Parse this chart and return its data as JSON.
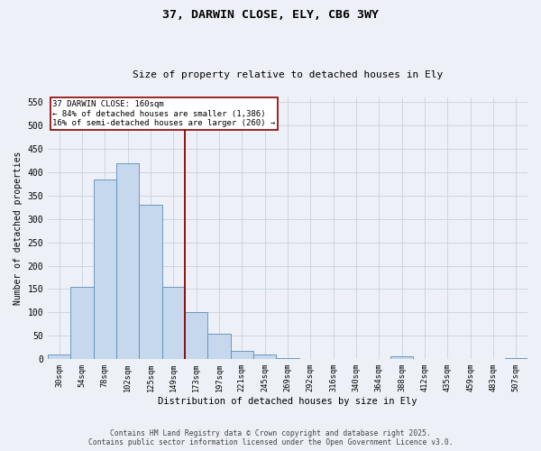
{
  "title1": "37, DARWIN CLOSE, ELY, CB6 3WY",
  "title2": "Size of property relative to detached houses in Ely",
  "xlabel": "Distribution of detached houses by size in Ely",
  "ylabel": "Number of detached properties",
  "categories": [
    "30sqm",
    "54sqm",
    "78sqm",
    "102sqm",
    "125sqm",
    "149sqm",
    "173sqm",
    "197sqm",
    "221sqm",
    "245sqm",
    "269sqm",
    "292sqm",
    "316sqm",
    "340sqm",
    "364sqm",
    "388sqm",
    "412sqm",
    "435sqm",
    "459sqm",
    "483sqm",
    "507sqm"
  ],
  "bar_values": [
    10,
    155,
    385,
    420,
    330,
    155,
    100,
    55,
    18,
    10,
    3,
    1,
    1,
    1,
    1,
    5,
    1,
    1,
    1,
    1,
    3
  ],
  "bar_color": "#c5d8ed",
  "bar_edge_color": "#5a8db5",
  "vline_x": 5.5,
  "vline_color": "#8b0000",
  "annotation_text1": "37 DARWIN CLOSE: 160sqm",
  "annotation_text2": "← 84% of detached houses are smaller (1,386)",
  "annotation_text3": "16% of semi-detached houses are larger (260) →",
  "annotation_box_color": "#8b0000",
  "ylim": [
    0,
    560
  ],
  "yticks": [
    0,
    50,
    100,
    150,
    200,
    250,
    300,
    350,
    400,
    450,
    500,
    550
  ],
  "grid_color": "#c8d0dc",
  "bg_color": "#edf1f7",
  "footer1": "Contains HM Land Registry data © Crown copyright and database right 2025.",
  "footer2": "Contains public sector information licensed under the Open Government Licence v3.0."
}
